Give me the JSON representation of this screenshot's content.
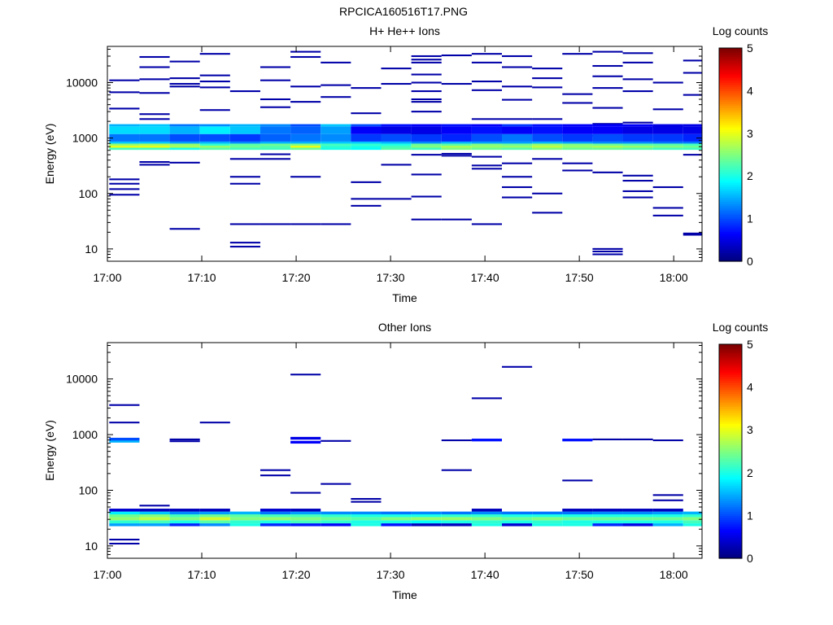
{
  "figure_title": "RPCICA160516T17.PNG",
  "chart_data": [
    {
      "type": "heatmap",
      "title": "H+ He++ Ions",
      "xlabel": "Time",
      "ylabel": "Energy (eV)",
      "x_ticks": [
        "17:00",
        "17:10",
        "17:20",
        "17:30",
        "17:40",
        "17:50",
        "18:00"
      ],
      "x_range_minutes": [
        0,
        63
      ],
      "y_ticks": [
        "10",
        "100",
        "1000",
        "10000"
      ],
      "y_range": [
        6,
        45000
      ],
      "y_scale": "log",
      "colorbar": {
        "label": "Log counts",
        "range": [
          0,
          5
        ],
        "ticks": [
          "0",
          "1",
          "2",
          "3",
          "4",
          "5"
        ]
      },
      "time_step_minutes": 3.2,
      "band_energies_eV": [
        640,
        700,
        760,
        830,
        900,
        1550,
        1700
      ],
      "band_rows": [
        [
          2.2,
          3.0,
          2.6,
          1.6,
          1.2,
          1.7,
          1.5
        ],
        [
          2.2,
          3.0,
          2.7,
          1.6,
          1.2,
          1.7,
          1.6
        ],
        [
          2.0,
          2.7,
          2.6,
          1.4,
          1.0,
          1.5,
          1.2
        ],
        [
          2.3,
          2.6,
          2.1,
          1.5,
          1.0,
          1.8,
          1.3
        ],
        [
          2.2,
          2.4,
          2.3,
          1.3,
          0.9,
          1.6,
          1.5
        ],
        [
          2.2,
          2.3,
          2.4,
          1.5,
          1.1,
          1.2,
          1.3
        ],
        [
          2.4,
          3.0,
          2.5,
          1.5,
          1.2,
          1.1,
          1.0
        ],
        [
          2.0,
          2.1,
          2.2,
          1.6,
          1.3,
          1.4,
          1.6
        ],
        [
          1.9,
          2.0,
          2.1,
          1.6,
          0.9,
          0.6,
          1.0
        ],
        [
          2.3,
          2.2,
          2.0,
          1.5,
          1.0,
          0.5,
          0.7
        ],
        [
          2.2,
          2.5,
          2.4,
          1.3,
          0.9,
          0.5,
          0.6
        ],
        [
          2.5,
          2.7,
          2.3,
          1.5,
          0.8,
          0.6,
          0.7
        ],
        [
          2.4,
          2.6,
          2.5,
          1.4,
          1.0,
          0.7,
          0.6
        ],
        [
          2.3,
          2.6,
          2.4,
          1.4,
          1.2,
          0.6,
          0.9
        ],
        [
          2.5,
          2.8,
          2.6,
          1.5,
          1.0,
          0.7,
          0.7
        ],
        [
          2.4,
          2.6,
          2.5,
          1.4,
          0.9,
          0.6,
          0.6
        ],
        [
          2.4,
          2.7,
          2.4,
          1.3,
          1.0,
          0.6,
          0.6
        ],
        [
          2.3,
          2.6,
          2.3,
          1.3,
          0.9,
          0.5,
          0.6
        ],
        [
          2.2,
          2.5,
          2.3,
          1.2,
          0.9,
          0.5,
          0.5
        ],
        [
          2.2,
          2.4,
          2.2,
          1.2,
          0.8,
          0.5,
          0.5
        ]
      ],
      "sparse_counts": 0.2,
      "sparse_bins_eV": [
        [
          95,
          120,
          150,
          180,
          3400,
          6700,
          11000
        ],
        [
          330,
          370,
          2200,
          2700,
          6500,
          11500,
          19000,
          29000
        ],
        [
          23,
          360,
          8500,
          9500,
          12000,
          24000
        ],
        [
          3200,
          8200,
          10500,
          13500,
          33000
        ],
        [
          11,
          13,
          28,
          150,
          200,
          420,
          7000
        ],
        [
          28,
          420,
          510,
          3600,
          5000,
          11000,
          19000
        ],
        [
          28,
          200,
          4500,
          8500,
          29000,
          36000
        ],
        [
          28,
          5500,
          9000,
          23000
        ],
        [
          60,
          80,
          160,
          2800,
          8000
        ],
        [
          80,
          330,
          1700,
          9500,
          18000
        ],
        [
          34,
          88,
          220,
          500,
          1200,
          3000,
          4500,
          5000,
          7000,
          10000,
          14000,
          23000,
          26000,
          30000
        ],
        [
          34,
          480,
          520,
          1700,
          9500,
          31000
        ],
        [
          28,
          280,
          320,
          460,
          1300,
          1500,
          2200,
          7300,
          10500,
          23000,
          33000
        ],
        [
          85,
          130,
          200,
          350,
          1500,
          2200,
          4900,
          8500,
          19000,
          30000
        ],
        [
          45,
          100,
          420,
          2200,
          8200,
          12000,
          18000
        ],
        [
          260,
          350,
          1100,
          1300,
          4300,
          6200,
          33000
        ],
        [
          8,
          9,
          10,
          240,
          700,
          1800,
          3500,
          8000,
          13000,
          20000,
          36000
        ],
        [
          85,
          110,
          170,
          210,
          1900,
          7000,
          11500,
          23000,
          34000
        ],
        [
          40,
          55,
          130,
          1600,
          3300,
          10000
        ],
        [
          18,
          19,
          500,
          6000,
          15000,
          25000
        ]
      ]
    },
    {
      "type": "heatmap",
      "title": "Other Ions",
      "xlabel": "Time",
      "ylabel": "Energy (eV)",
      "x_ticks": [
        "17:00",
        "17:10",
        "17:20",
        "17:30",
        "17:40",
        "17:50",
        "18:00"
      ],
      "x_range_minutes": [
        0,
        63
      ],
      "y_ticks": [
        "10",
        "100",
        "1000",
        "10000"
      ],
      "y_range": [
        6,
        45000
      ],
      "y_scale": "log",
      "colorbar": {
        "label": "Log counts",
        "range": [
          0,
          5
        ],
        "ticks": [
          "0",
          "1",
          "2",
          "3",
          "4",
          "5"
        ]
      },
      "time_step_minutes": 3.2,
      "band_energies_eV": [
        24,
        27,
        31,
        35,
        39,
        44
      ],
      "band_rows": [
        [
          1.4,
          2.1,
          2.6,
          2.4,
          1.8,
          0.4
        ],
        [
          1.4,
          2.2,
          2.8,
          2.5,
          1.6,
          0.3
        ],
        [
          0.8,
          2.0,
          2.5,
          2.2,
          1.3,
          0.3
        ],
        [
          1.3,
          2.3,
          2.9,
          2.4,
          1.4,
          0.3
        ],
        [
          2.0,
          2.1,
          2.5,
          2.3,
          1.5,
          0.0
        ],
        [
          0.8,
          2.0,
          2.6,
          2.2,
          1.2,
          0.4
        ],
        [
          0.7,
          2.2,
          2.5,
          2.2,
          1.4,
          0.3
        ],
        [
          0.6,
          2.1,
          2.4,
          2.1,
          1.3,
          0.0
        ],
        [
          2.0,
          2.0,
          2.3,
          2.0,
          1.3,
          0.0
        ],
        [
          0.7,
          2.0,
          2.5,
          2.0,
          1.2,
          0.0
        ],
        [
          0.3,
          1.9,
          2.6,
          2.0,
          1.3,
          0.0
        ],
        [
          0.3,
          2.0,
          2.6,
          2.1,
          1.2,
          0.0
        ],
        [
          2.0,
          2.1,
          2.5,
          2.1,
          1.3,
          0.3
        ],
        [
          0.4,
          2.0,
          2.4,
          2.0,
          1.2,
          0.0
        ],
        [
          2.0,
          2.1,
          2.5,
          2.0,
          1.2,
          0.0
        ],
        [
          2.0,
          2.0,
          2.4,
          2.0,
          1.2,
          0.3
        ],
        [
          0.8,
          2.0,
          2.4,
          2.0,
          1.3,
          0.3
        ],
        [
          0.5,
          2.0,
          2.4,
          2.0,
          1.3,
          0.3
        ],
        [
          1.5,
          2.0,
          2.4,
          2.0,
          1.4,
          0.3
        ],
        [
          2.0,
          2.2,
          2.5,
          2.1,
          1.5,
          0.0
        ]
      ],
      "sparse_counts": 0.2,
      "sparse_bins_eV": [
        [
          11,
          13,
          1650,
          3400
        ],
        [
          53
        ],
        [
          760,
          820
        ],
        [
          1650
        ],
        [],
        [
          185,
          230
        ],
        [
          90,
          12000
        ],
        [
          130,
          770
        ],
        [
          62,
          70
        ],
        [],
        [],
        [
          230,
          790
        ],
        [
          4500
        ],
        [
          16500
        ],
        [],
        [
          150
        ],
        [
          820
        ],
        [
          820
        ],
        [
          66,
          82,
          790
        ],
        []
      ],
      "extra_bins": [
        {
          "slot": 0,
          "energy_eV": 760,
          "counts": 1.5
        },
        {
          "slot": 0,
          "energy_eV": 830,
          "counts": 1.0
        },
        {
          "slot": 6,
          "energy_eV": 730,
          "counts": 0.6
        },
        {
          "slot": 6,
          "energy_eV": 860,
          "counts": 0.5
        },
        {
          "slot": 12,
          "energy_eV": 800,
          "counts": 0.7
        },
        {
          "slot": 15,
          "energy_eV": 800,
          "counts": 0.7
        }
      ]
    }
  ]
}
